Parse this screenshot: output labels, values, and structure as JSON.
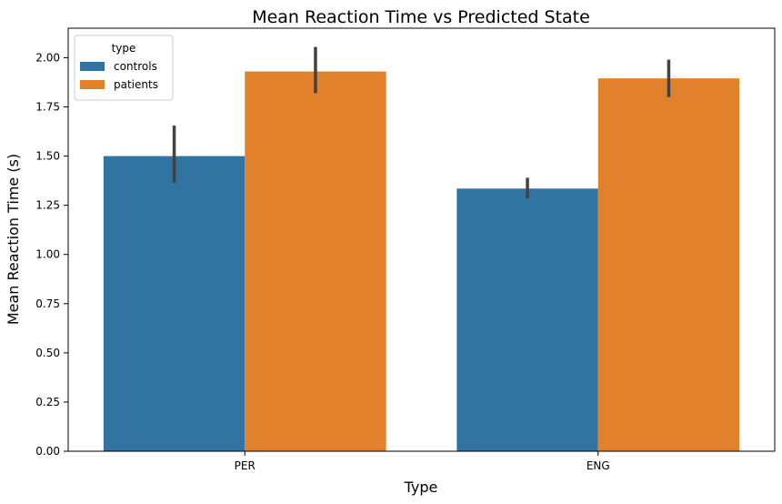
{
  "chart_data": {
    "type": "bar",
    "title": "Mean Reaction Time vs Predicted State",
    "xlabel": "Type",
    "ylabel": "Mean Reaction Time (s)",
    "categories": [
      "PER",
      "ENG"
    ],
    "ylim": [
      0,
      2.15
    ],
    "yticks": [
      0.0,
      0.25,
      0.5,
      0.75,
      1.0,
      1.25,
      1.5,
      1.75,
      2.0
    ],
    "ytick_labels": [
      "0.00",
      "0.25",
      "0.50",
      "0.75",
      "1.00",
      "1.25",
      "1.50",
      "1.75",
      "2.00"
    ],
    "grid": false,
    "legend": {
      "title": "type",
      "placement": "top-left"
    },
    "series": [
      {
        "name": "controls",
        "color": "#3274a1",
        "values": [
          1.5,
          1.335
        ],
        "error_low": [
          1.365,
          1.285
        ],
        "error_high": [
          1.655,
          1.39
        ]
      },
      {
        "name": "patients",
        "color": "#e1812c",
        "values": [
          1.93,
          1.895
        ],
        "error_low": [
          1.82,
          1.8
        ],
        "error_high": [
          2.055,
          1.99
        ]
      }
    ]
  }
}
